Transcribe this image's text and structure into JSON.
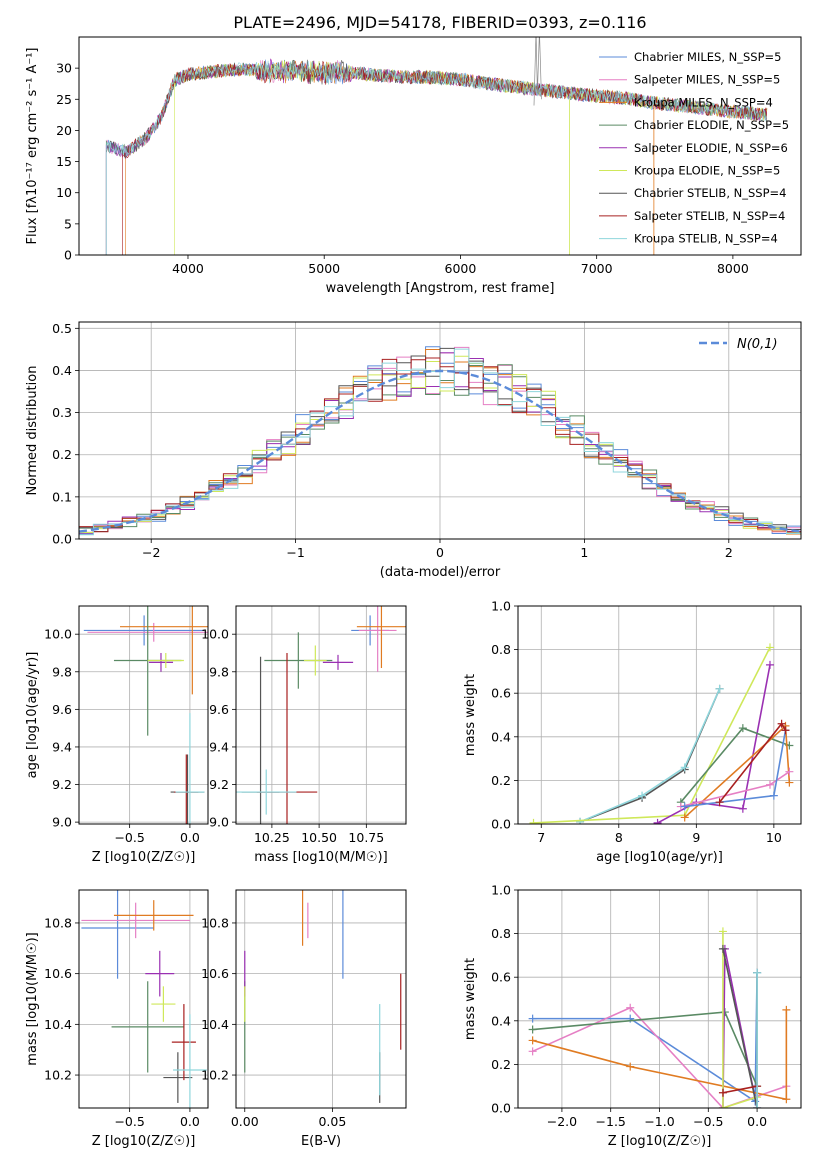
{
  "figure_title": "PLATE=2496, MJD=54178, FIBERID=0393, z=0.116",
  "colors": {
    "blue": "#5b8bd9",
    "pink": "#e57fc4",
    "orange": "#e07b22",
    "green": "#5a8a64",
    "purple": "#9a30b2",
    "yellow": "#cfe85a",
    "dark": "#555555",
    "red": "#a82020",
    "cyan": "#8fd6dc"
  },
  "chart_data": [
    {
      "id": "spectrum",
      "type": "line",
      "xlabel": "wavelength [Angstrom, rest frame]",
      "ylabel": "Flux [fλ10⁻¹⁷ erg cm⁻² s⁻¹ A⁻¹]",
      "xlim": [
        3200,
        8500
      ],
      "ylim": [
        0,
        35
      ],
      "xticks": [
        4000,
        5000,
        6000,
        7000,
        8000
      ],
      "yticks": [
        0,
        5,
        10,
        15,
        20,
        25,
        30
      ],
      "legend_position": "top-right",
      "series": [
        {
          "name": "Chabrier MILES, N_SSP=5",
          "color_key": "blue"
        },
        {
          "name": "Salpeter MILES, N_SSP=5",
          "color_key": "pink"
        },
        {
          "name": "Kroupa MILES, N_SSP=4",
          "color_key": "orange"
        },
        {
          "name": "Chabrier ELODIE, N_SSP=5",
          "color_key": "green"
        },
        {
          "name": "Salpeter ELODIE, N_SSP=6",
          "color_key": "purple"
        },
        {
          "name": "Kroupa ELODIE, N_SSP=5",
          "color_key": "yellow"
        },
        {
          "name": "Chabrier STELIB, N_SSP=4",
          "color_key": "dark"
        },
        {
          "name": "Salpeter STELIB, N_SSP=4",
          "color_key": "red"
        },
        {
          "name": "Kroupa STELIB, N_SSP=4",
          "color_key": "cyan"
        }
      ],
      "profile": {
        "x": [
          3400,
          3550,
          3700,
          3800,
          3900,
          4000,
          4200,
          4400,
          4600,
          4800,
          5000,
          5200,
          5400,
          5600,
          5800,
          6000,
          6200,
          6400,
          6600,
          6800,
          7000,
          7200,
          7400,
          7600,
          7800,
          8000,
          8250
        ],
        "y": [
          17.5,
          16.5,
          19,
          22,
          28,
          29,
          29.5,
          29.8,
          29.5,
          29.6,
          29.2,
          29.3,
          28.8,
          28.6,
          28.5,
          28.2,
          27.5,
          27,
          26.5,
          26,
          25.5,
          25.2,
          24.5,
          24,
          23.5,
          23,
          22.5
        ]
      }
    },
    {
      "id": "residuals",
      "type": "line",
      "xlabel": "(data-model)/error",
      "ylabel": "Normed distribution",
      "xlim": [
        -2.5,
        2.5
      ],
      "ylim": [
        0,
        0.515
      ],
      "xticks": [
        -2,
        -1,
        0,
        1,
        2
      ],
      "xtick_labels": [
        "−2",
        "−1",
        "0",
        "1",
        "2"
      ],
      "yticks": [
        0.0,
        0.1,
        0.2,
        0.3,
        0.4,
        0.5
      ],
      "ytick_labels": [
        "0.0",
        "0.1",
        "0.2",
        "0.3",
        "0.4",
        "0.5"
      ],
      "grid": true,
      "legend_position": "top-right",
      "reference_curve": {
        "name": "N(0,1)",
        "color_key": "blue",
        "style": "dashed",
        "mean": 0,
        "sigma": 1
      }
    },
    {
      "id": "age-vs-Z",
      "type": "scatter",
      "xlabel": "Z [log10(Z/Z☉)]",
      "ylabel": "age  [log10(age/yr)]",
      "xlim": [
        -0.92,
        0.15
      ],
      "ylim": [
        8.99,
        10.15
      ],
      "xticks": [
        -0.5,
        0.0
      ],
      "xtick_labels": [
        "−0.5",
        "0.0"
      ],
      "yticks": [
        9.0,
        9.2,
        9.4,
        9.6,
        9.8,
        10.0
      ],
      "ytick_labels": [
        "9.0",
        "9.2",
        "9.4",
        "9.6",
        "9.8",
        "10.0"
      ],
      "grid": true,
      "points": [
        {
          "c": "blue",
          "x": -0.38,
          "y": 10.02,
          "xerr": 0.5,
          "yerr": 0.08
        },
        {
          "c": "pink",
          "x": -0.3,
          "y": 10.01,
          "xerr": 0.55,
          "yerr": 0.05
        },
        {
          "c": "orange",
          "x": 0.02,
          "y": 10.04,
          "xerr": 0.6,
          "yerr": 0.36
        },
        {
          "c": "green",
          "x": -0.35,
          "y": 9.86,
          "xerr": 0.28,
          "yerr": 0.4
        },
        {
          "c": "purple",
          "x": -0.24,
          "y": 9.85,
          "xerr": 0.1,
          "yerr": 0.05
        },
        {
          "c": "yellow",
          "x": -0.2,
          "y": 9.86,
          "xerr": 0.15,
          "yerr": 0.04
        },
        {
          "c": "dark",
          "x": -0.02,
          "y": 9.16,
          "xerr": 0.14,
          "yerr": 0.2
        },
        {
          "c": "red",
          "x": -0.03,
          "y": 9.16,
          "xerr": 0.1,
          "yerr": 0.2
        },
        {
          "c": "cyan",
          "x": 0.0,
          "y": 9.16,
          "xerr": 0.12,
          "yerr": 0.42
        }
      ]
    },
    {
      "id": "age-vs-mass",
      "type": "scatter",
      "xlabel": "mass [log10(M/M☉)]",
      "ylabel": "",
      "xlim": [
        10.06,
        10.96
      ],
      "ylim": [
        8.99,
        10.15
      ],
      "xticks": [
        10.25,
        10.5,
        10.75
      ],
      "xtick_labels": [
        "10.25",
        "10.50",
        "10.75"
      ],
      "yticks": [
        9.0,
        9.2,
        9.4,
        9.6,
        9.8,
        10.0
      ],
      "ytick_labels": [
        "9.0",
        "9.2",
        "9.4",
        "9.6",
        "9.8",
        "10.0"
      ],
      "grid": true,
      "points": [
        {
          "c": "blue",
          "x": 10.77,
          "y": 10.02,
          "xerr": 0.1,
          "yerr": 0.08
        },
        {
          "c": "pink",
          "x": 10.81,
          "y": 10.02,
          "xerr": 0.1,
          "yerr": 0.22
        },
        {
          "c": "orange",
          "x": 10.83,
          "y": 10.04,
          "xerr": 0.13,
          "yerr": 0.22
        },
        {
          "c": "green",
          "x": 10.39,
          "y": 9.86,
          "xerr": 0.18,
          "yerr": 0.15
        },
        {
          "c": "purple",
          "x": 10.6,
          "y": 9.85,
          "xerr": 0.08,
          "yerr": 0.04
        },
        {
          "c": "yellow",
          "x": 10.48,
          "y": 9.86,
          "xerr": 0.06,
          "yerr": 0.08
        },
        {
          "c": "dark",
          "x": 10.19,
          "y": 9.16,
          "xerr": 0.1,
          "yerr": 0.72
        },
        {
          "c": "red",
          "x": 10.33,
          "y": 9.16,
          "xerr": 0.16,
          "yerr": 0.74
        },
        {
          "c": "cyan",
          "x": 10.22,
          "y": 9.16,
          "xerr": 0.16,
          "yerr": 0.12
        }
      ]
    },
    {
      "id": "weight-vs-age",
      "type": "line",
      "xlabel": "age  [log10(age/yr)]",
      "ylabel": "mass weight",
      "xlim": [
        6.7,
        10.35
      ],
      "ylim": [
        0,
        1
      ],
      "xticks": [
        7,
        8,
        9,
        10
      ],
      "yticks": [
        0.0,
        0.2,
        0.4,
        0.6,
        0.8,
        1.0
      ],
      "ytick_labels": [
        "0.0",
        "0.2",
        "0.4",
        "0.6",
        "0.8",
        "1.0"
      ],
      "grid": true,
      "series": [
        {
          "c": "dark",
          "x": [
            7.5,
            8.3,
            8.85,
            9.3
          ],
          "y": [
            0.01,
            0.12,
            0.25,
            0.62
          ]
        },
        {
          "c": "cyan",
          "x": [
            7.5,
            8.3,
            8.85,
            9.3
          ],
          "y": [
            0.01,
            0.13,
            0.26,
            0.62
          ]
        },
        {
          "c": "yellow",
          "x": [
            6.9,
            8.85,
            9.95
          ],
          "y": [
            0.005,
            0.04,
            0.81
          ]
        },
        {
          "c": "purple",
          "x": [
            8.5,
            9.0,
            9.6,
            9.95
          ],
          "y": [
            0.005,
            0.1,
            0.07,
            0.73
          ]
        },
        {
          "c": "green",
          "x": [
            8.8,
            9.6,
            10.2
          ],
          "y": [
            0.1,
            0.44,
            0.36
          ]
        },
        {
          "c": "orange",
          "x": [
            8.85,
            10.15,
            10.2
          ],
          "y": [
            0.03,
            0.45,
            0.19
          ]
        },
        {
          "c": "pink",
          "x": [
            8.8,
            9.95,
            10.2
          ],
          "y": [
            0.08,
            0.18,
            0.24
          ]
        },
        {
          "c": "blue",
          "x": [
            8.85,
            10.0,
            10.15
          ],
          "y": [
            0.08,
            0.13,
            0.43
          ]
        },
        {
          "c": "red",
          "x": [
            9.3,
            10.1,
            10.15
          ],
          "y": [
            0.1,
            0.46,
            0.43
          ]
        }
      ]
    },
    {
      "id": "mass-vs-Z",
      "type": "scatter",
      "xlabel": "Z [log10(Z/Z☉)]",
      "ylabel": "mass [log10(M/M☉)]",
      "xlim": [
        -0.92,
        0.15
      ],
      "ylim": [
        10.07,
        10.93
      ],
      "xticks": [
        -0.5,
        0.0
      ],
      "xtick_labels": [
        "−0.5",
        "0.0"
      ],
      "yticks": [
        10.2,
        10.4,
        10.6,
        10.8
      ],
      "ytick_labels": [
        "10.2",
        "10.4",
        "10.6",
        "10.8"
      ],
      "grid": true,
      "points": [
        {
          "c": "blue",
          "x": -0.6,
          "y": 10.78,
          "xerr": 0.3,
          "yerr": 0.2
        },
        {
          "c": "pink",
          "x": -0.45,
          "y": 10.81,
          "xerr": 0.45,
          "yerr": 0.07
        },
        {
          "c": "orange",
          "x": -0.3,
          "y": 10.83,
          "xerr": 0.33,
          "yerr": 0.06
        },
        {
          "c": "green",
          "x": -0.35,
          "y": 10.39,
          "xerr": 0.3,
          "yerr": 0.18
        },
        {
          "c": "purple",
          "x": -0.25,
          "y": 10.6,
          "xerr": 0.12,
          "yerr": 0.09
        },
        {
          "c": "yellow",
          "x": -0.22,
          "y": 10.48,
          "xerr": 0.1,
          "yerr": 0.07
        },
        {
          "c": "dark",
          "x": -0.1,
          "y": 10.19,
          "xerr": 0.12,
          "yerr": 0.1
        },
        {
          "c": "red",
          "x": -0.05,
          "y": 10.33,
          "xerr": 0.1,
          "yerr": 0.15
        },
        {
          "c": "cyan",
          "x": 0.0,
          "y": 10.22,
          "xerr": 0.14,
          "yerr": 0.22
        }
      ]
    },
    {
      "id": "mass-vs-EBV",
      "type": "scatter",
      "xlabel": "E(B-V)",
      "ylabel": "",
      "xlim": [
        -0.005,
        0.092
      ],
      "ylim": [
        10.07,
        10.93
      ],
      "xticks": [
        0.0,
        0.05
      ],
      "xtick_labels": [
        "0.00",
        "0.05"
      ],
      "yticks": [
        10.2,
        10.4,
        10.6,
        10.8
      ],
      "ytick_labels": [
        "10.2",
        "10.4",
        "10.6",
        "10.8"
      ],
      "grid": true,
      "points": [
        {
          "c": "blue",
          "x": 0.056,
          "y": 10.78,
          "xerr": 0,
          "yerr": 0.2
        },
        {
          "c": "pink",
          "x": 0.036,
          "y": 10.81,
          "xerr": 0,
          "yerr": 0.07
        },
        {
          "c": "orange",
          "x": 0.033,
          "y": 10.83,
          "xerr": 0,
          "yerr": 0.12
        },
        {
          "c": "green",
          "x": 0.0,
          "y": 10.39,
          "xerr": 0,
          "yerr": 0.18
        },
        {
          "c": "purple",
          "x": 0.0,
          "y": 10.6,
          "xerr": 0,
          "yerr": 0.09
        },
        {
          "c": "yellow",
          "x": 0.0,
          "y": 10.48,
          "xerr": 0,
          "yerr": 0.07
        },
        {
          "c": "dark",
          "x": 0.077,
          "y": 10.19,
          "xerr": 0,
          "yerr": 0.1
        },
        {
          "c": "red",
          "x": 0.089,
          "y": 10.45,
          "xerr": 0,
          "yerr": 0.15
        },
        {
          "c": "cyan",
          "x": 0.077,
          "y": 10.3,
          "xerr": 0,
          "yerr": 0.18
        }
      ]
    },
    {
      "id": "weight-vs-Z",
      "type": "line",
      "xlabel": "Z [log10(Z/Z☉)]",
      "ylabel": "mass weight",
      "xlim": [
        -2.45,
        0.45
      ],
      "ylim": [
        0,
        1
      ],
      "xticks": [
        -2.0,
        -1.5,
        -1.0,
        -0.5,
        0.0
      ],
      "xtick_labels": [
        "−2.0",
        "−1.5",
        "−1.0",
        "−0.5",
        "0.0"
      ],
      "yticks": [
        0.0,
        0.2,
        0.4,
        0.6,
        0.8,
        1.0
      ],
      "ytick_labels": [
        "0.0",
        "0.2",
        "0.4",
        "0.6",
        "0.8",
        "1.0"
      ],
      "grid": true,
      "series": [
        {
          "c": "blue",
          "x": [
            -2.3,
            -1.3,
            -0.02,
            0.0
          ],
          "y": [
            0.41,
            0.41,
            0.03,
            0.62
          ]
        },
        {
          "c": "pink",
          "x": [
            -2.3,
            -1.3,
            -0.35,
            0.3
          ],
          "y": [
            0.26,
            0.46,
            0.0,
            0.1
          ]
        },
        {
          "c": "orange",
          "x": [
            -2.3,
            -1.3,
            0.3,
            0.3
          ],
          "y": [
            0.31,
            0.19,
            0.04,
            0.45
          ]
        },
        {
          "c": "green",
          "x": [
            -2.3,
            -0.33,
            0.0
          ],
          "y": [
            0.36,
            0.44,
            0.1
          ]
        },
        {
          "c": "purple",
          "x": [
            -0.35,
            -0.33,
            0.0
          ],
          "y": [
            0.0,
            0.73,
            0.0
          ]
        },
        {
          "c": "yellow",
          "x": [
            -0.35,
            -0.35,
            0.0
          ],
          "y": [
            0.81,
            0.0,
            0.05
          ]
        },
        {
          "c": "dark",
          "x": [
            -0.35,
            0.0,
            0.0
          ],
          "y": [
            0.73,
            0.0,
            0.62
          ]
        },
        {
          "c": "red",
          "x": [
            -0.35,
            0.0
          ],
          "y": [
            0.07,
            0.1
          ]
        },
        {
          "c": "cyan",
          "x": [
            0.0,
            0.0
          ],
          "y": [
            0.0,
            0.62
          ]
        }
      ]
    }
  ]
}
